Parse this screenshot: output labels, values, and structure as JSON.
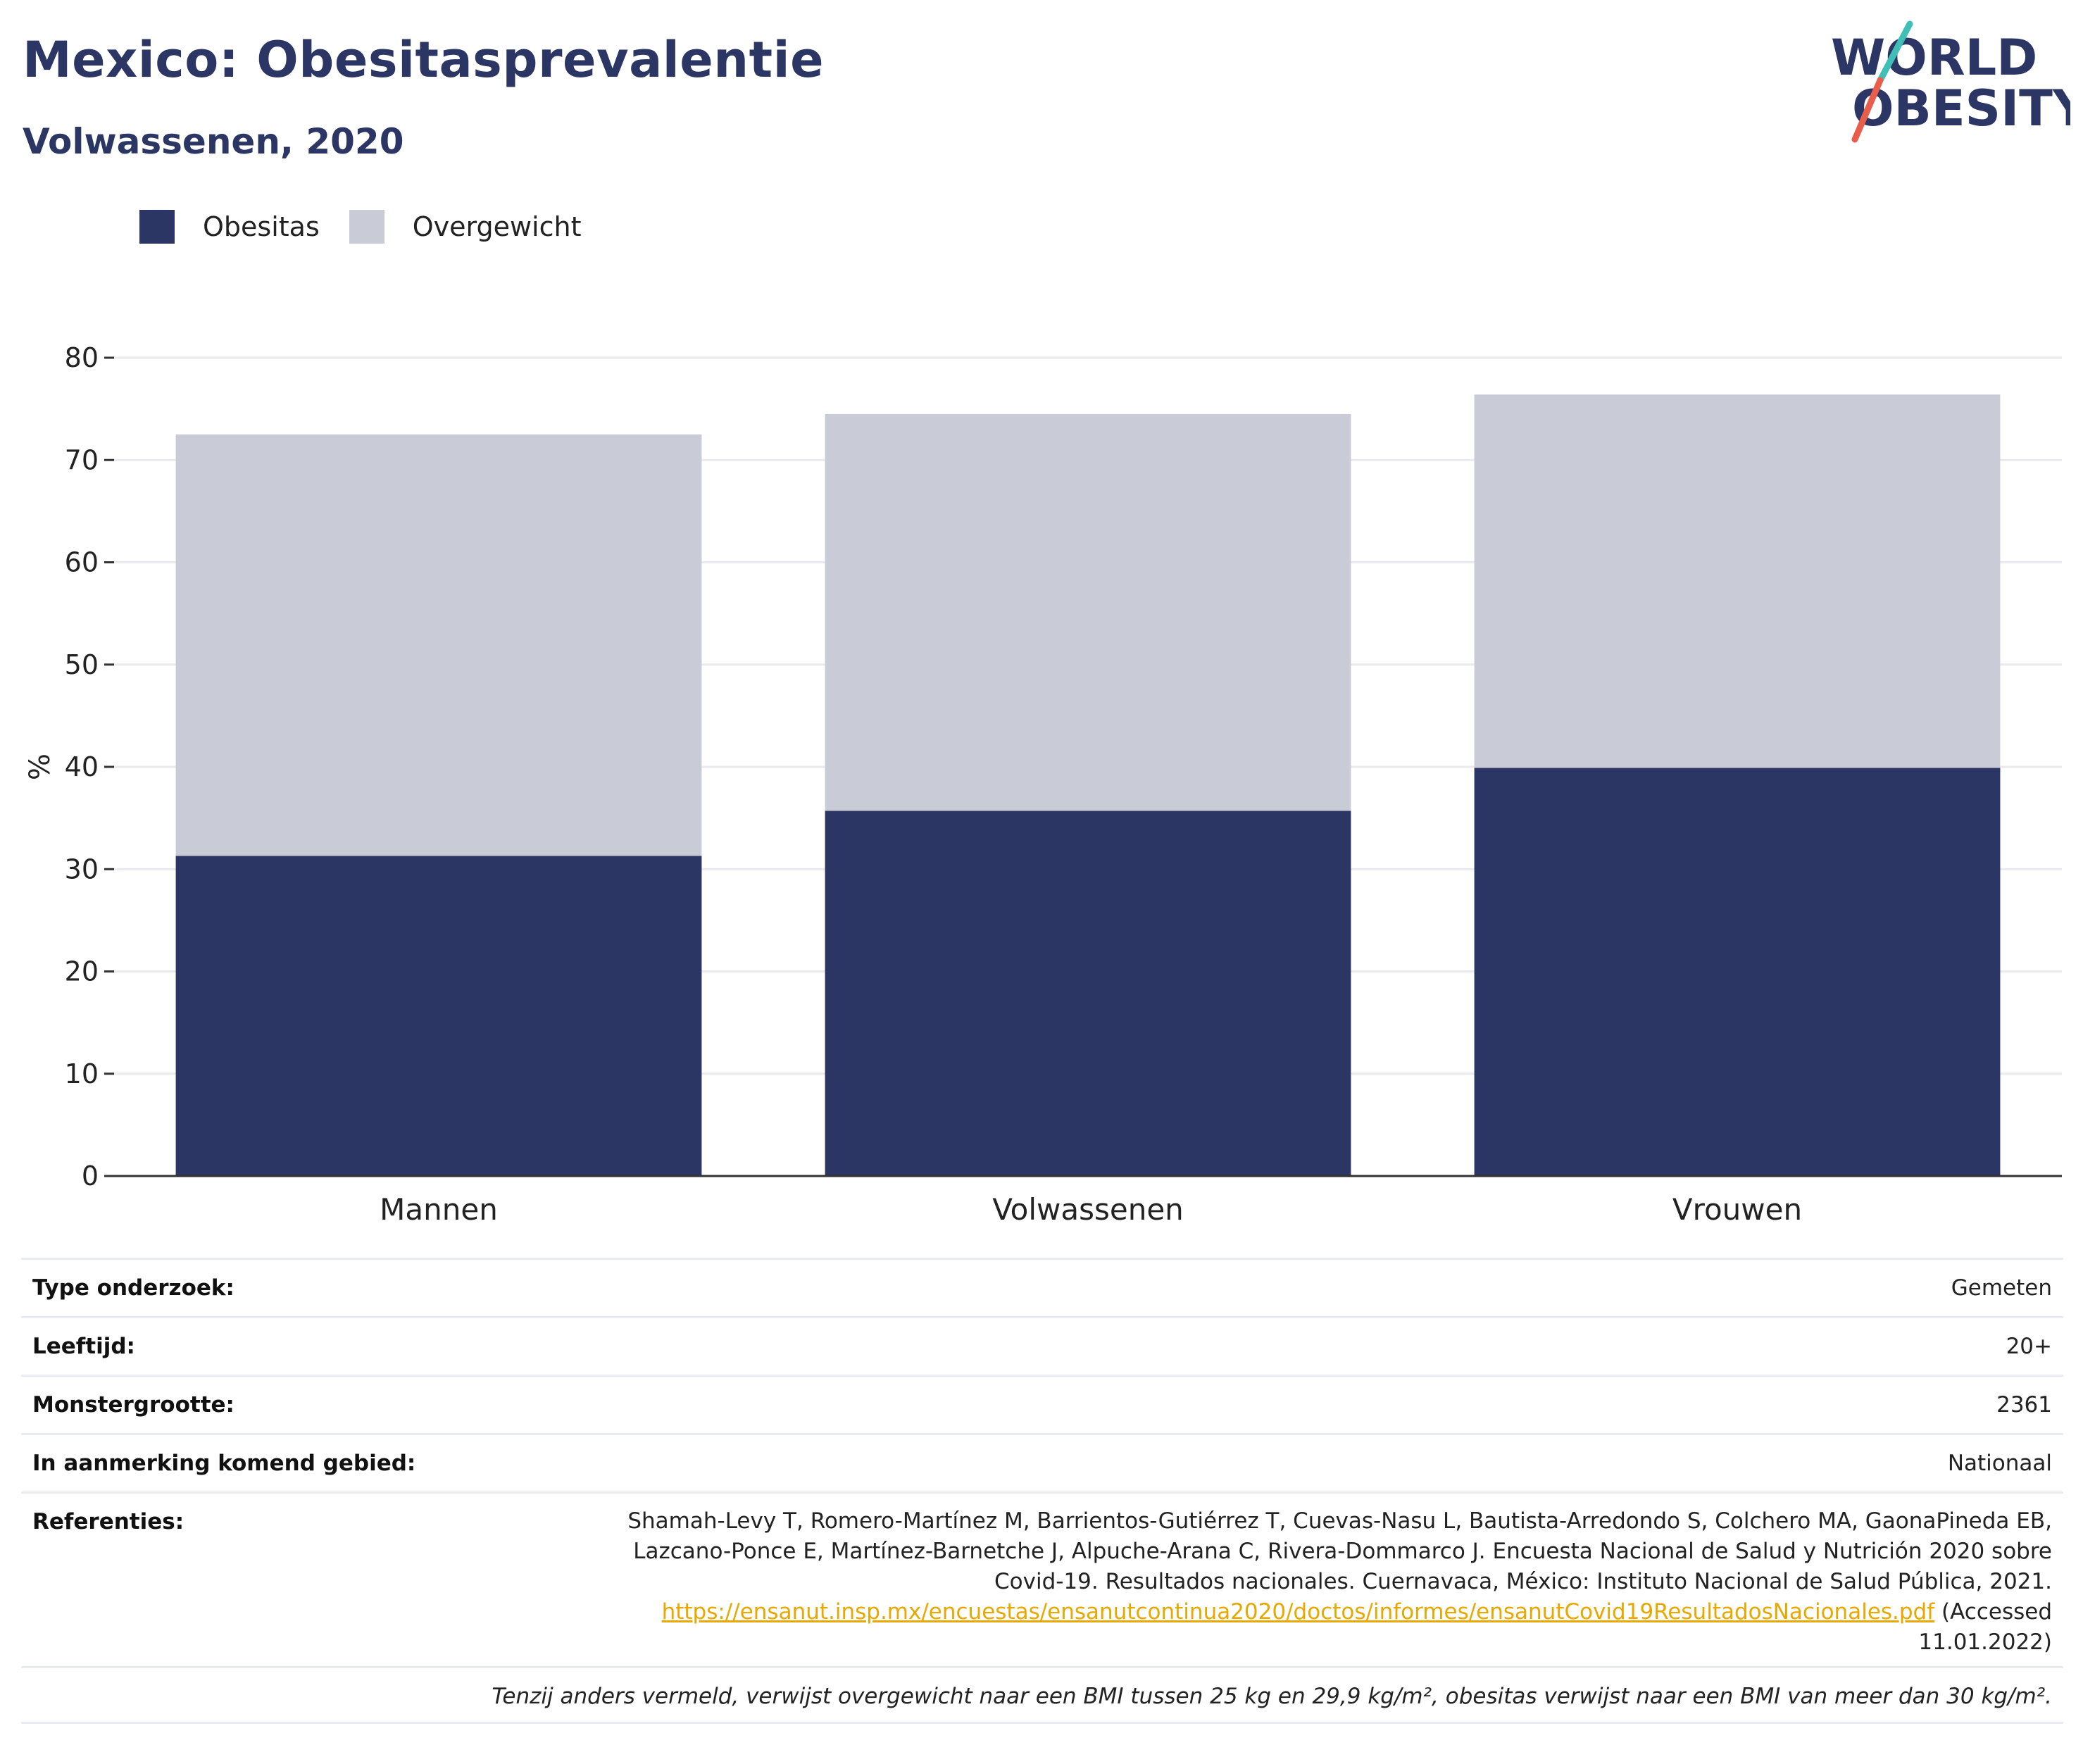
{
  "header": {
    "title": "Mexico: Obesitasprevalentie",
    "subtitle": "Volwassenen, 2020"
  },
  "logo": {
    "line1": "WORLD",
    "line2": "OBESITY",
    "slash_colors": [
      "#3fbfb5",
      "#e85d4c"
    ]
  },
  "colors": {
    "obesitas": "#2b3664",
    "overgewicht": "#c9cbd6",
    "title": "#2b3664",
    "link": "#e8a800"
  },
  "chart_data": {
    "type": "bar",
    "stacked": true,
    "categories": [
      "Mannen",
      "Volwassenen",
      "Vrouwen"
    ],
    "series": [
      {
        "name": "Obesitas",
        "values": [
          31.3,
          35.7,
          39.9
        ],
        "color": "#2b3664"
      },
      {
        "name": "Overgewicht",
        "values": [
          41.2,
          38.8,
          36.5
        ],
        "color": "#c9cbd6"
      }
    ],
    "ylabel": "%",
    "ylim": [
      0,
      80
    ],
    "yticks": [
      0,
      10,
      20,
      30,
      40,
      50,
      60,
      70,
      80
    ],
    "grid": true,
    "legend": "top-left"
  },
  "info": {
    "rows": [
      {
        "label": "Type onderzoek:",
        "value": "Gemeten"
      },
      {
        "label": "Leeftijd:",
        "value": "20+"
      },
      {
        "label": "Monstergrootte:",
        "value": "2361"
      },
      {
        "label": "In aanmerking komend gebied:",
        "value": "Nationaal"
      }
    ],
    "references_label": "Referenties:",
    "references_text": "Shamah-Levy T, Romero-Martínez M, Barrientos-Gutiérrez T, Cuevas-Nasu L, Bautista-Arredondo S, Colchero MA, GaonaPineda EB, Lazcano-Ponce E, Martínez-Barnetche J, Alpuche-Arana C, Rivera-Dommarco J. Encuesta Nacional de Salud y Nutrición 2020 sobre Covid-19. Resultados nacionales. Cuernavaca, México: Instituto Nacional de Salud Pública, 2021.",
    "references_link": "https://ensanut.insp.mx/encuestas/ensanutcontinua2020/doctos/informes/ensanutCovid19ResultadosNacionales.pdf",
    "references_suffix": "(Accessed 11.01.2022)",
    "footnote": "Tenzij anders vermeld, verwijst overgewicht naar een BMI tussen 25 kg en 29,9 kg/m², obesitas verwijst naar een BMI van meer dan 30 kg/m²."
  }
}
